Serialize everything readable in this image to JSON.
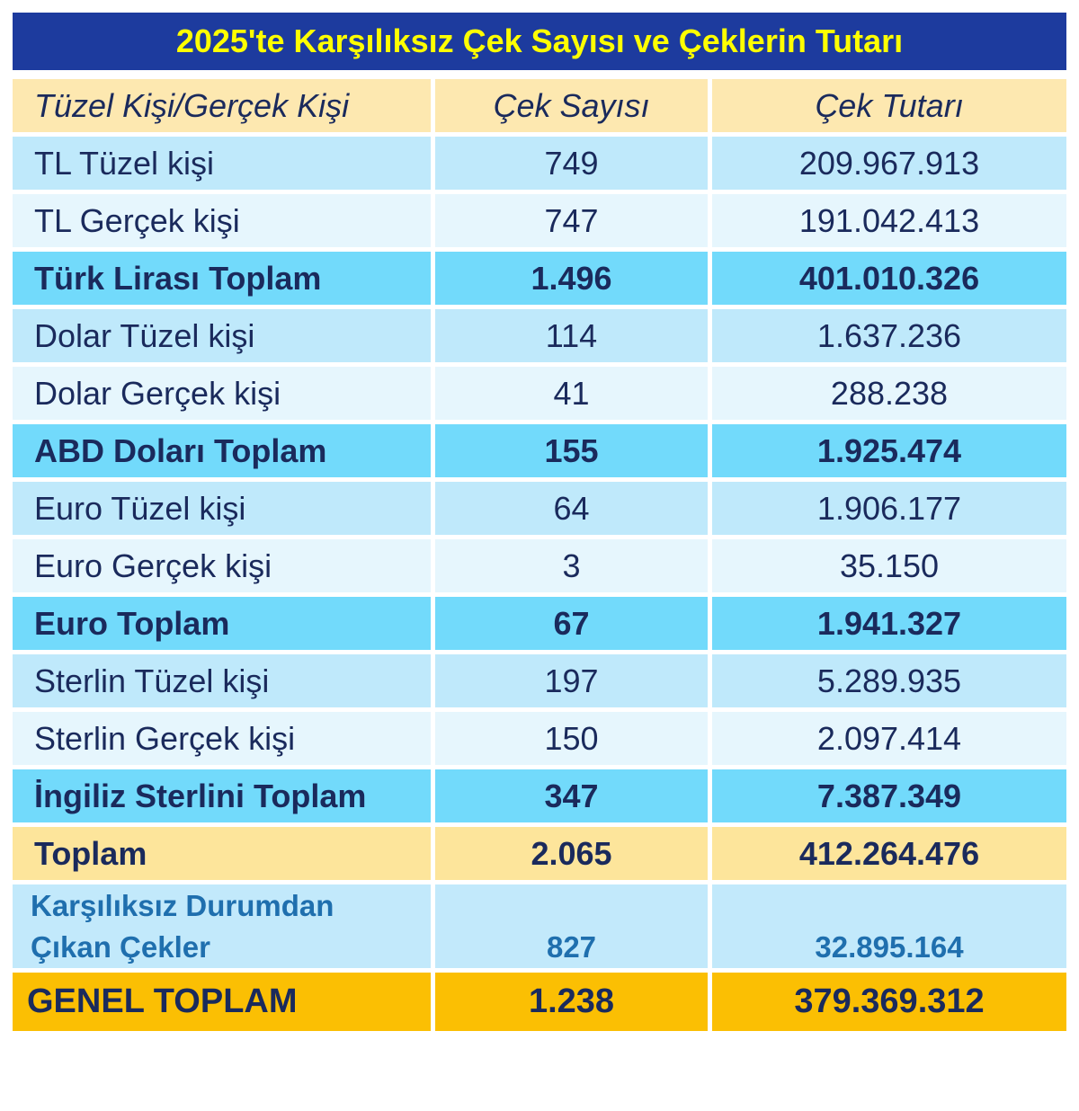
{
  "title": "2025'te Karşılıksız Çek Sayısı ve Çeklerin Tutarı",
  "header": {
    "col1": "Tüzel Kişi/Gerçek Kişi",
    "col2": "Çek Sayısı",
    "col3": "Çek Tutarı"
  },
  "rows": [
    {
      "label": "TL Tüzel kişi",
      "count": "749",
      "amount": "209.967.913"
    },
    {
      "label": "TL Gerçek kişi",
      "count": "747",
      "amount": "191.042.413"
    },
    {
      "label": "Türk Lirası Toplam",
      "count": "1.496",
      "amount": "401.010.326"
    },
    {
      "label": "Dolar Tüzel kişi",
      "count": "114",
      "amount": "1.637.236"
    },
    {
      "label": "Dolar Gerçek kişi",
      "count": "41",
      "amount": "288.238"
    },
    {
      "label": "ABD Doları Toplam",
      "count": "155",
      "amount": "1.925.474"
    },
    {
      "label": "Euro Tüzel kişi",
      "count": "64",
      "amount": "1.906.177"
    },
    {
      "label": "Euro Gerçek kişi",
      "count": "3",
      "amount": "35.150"
    },
    {
      "label": "Euro Toplam",
      "count": "67",
      "amount": "1.941.327"
    },
    {
      "label": "Sterlin Tüzel kişi",
      "count": "197",
      "amount": "5.289.935"
    },
    {
      "label": "Sterlin Gerçek kişi",
      "count": "150",
      "amount": "2.097.414"
    },
    {
      "label": "İngiliz Sterlini Toplam",
      "count": "347",
      "amount": "7.387.349"
    }
  ],
  "total": {
    "label": "Toplam",
    "count": "2.065",
    "amount": "412.264.476"
  },
  "cleared": {
    "label_line1": "Karşılıksız Durumdan",
    "label_line2": "Çıkan Çekler",
    "count": "827",
    "amount": "32.895.164"
  },
  "grand_total": {
    "label": "GENEL TOPLAM",
    "count": "1.238",
    "amount": "379.369.312"
  },
  "colors": {
    "title_bg": "#1d3b9e",
    "title_text": "#ffff00",
    "header_bg": "#fde8b0",
    "row_light": "#bfe9fb",
    "row_lighter": "#e6f6fd",
    "subtotal_bg": "#72dafb",
    "total_bg": "#fde59b",
    "grand_total_bg": "#fbbf03",
    "text": "#1a2a5c",
    "note_text": "#1f6fae"
  }
}
